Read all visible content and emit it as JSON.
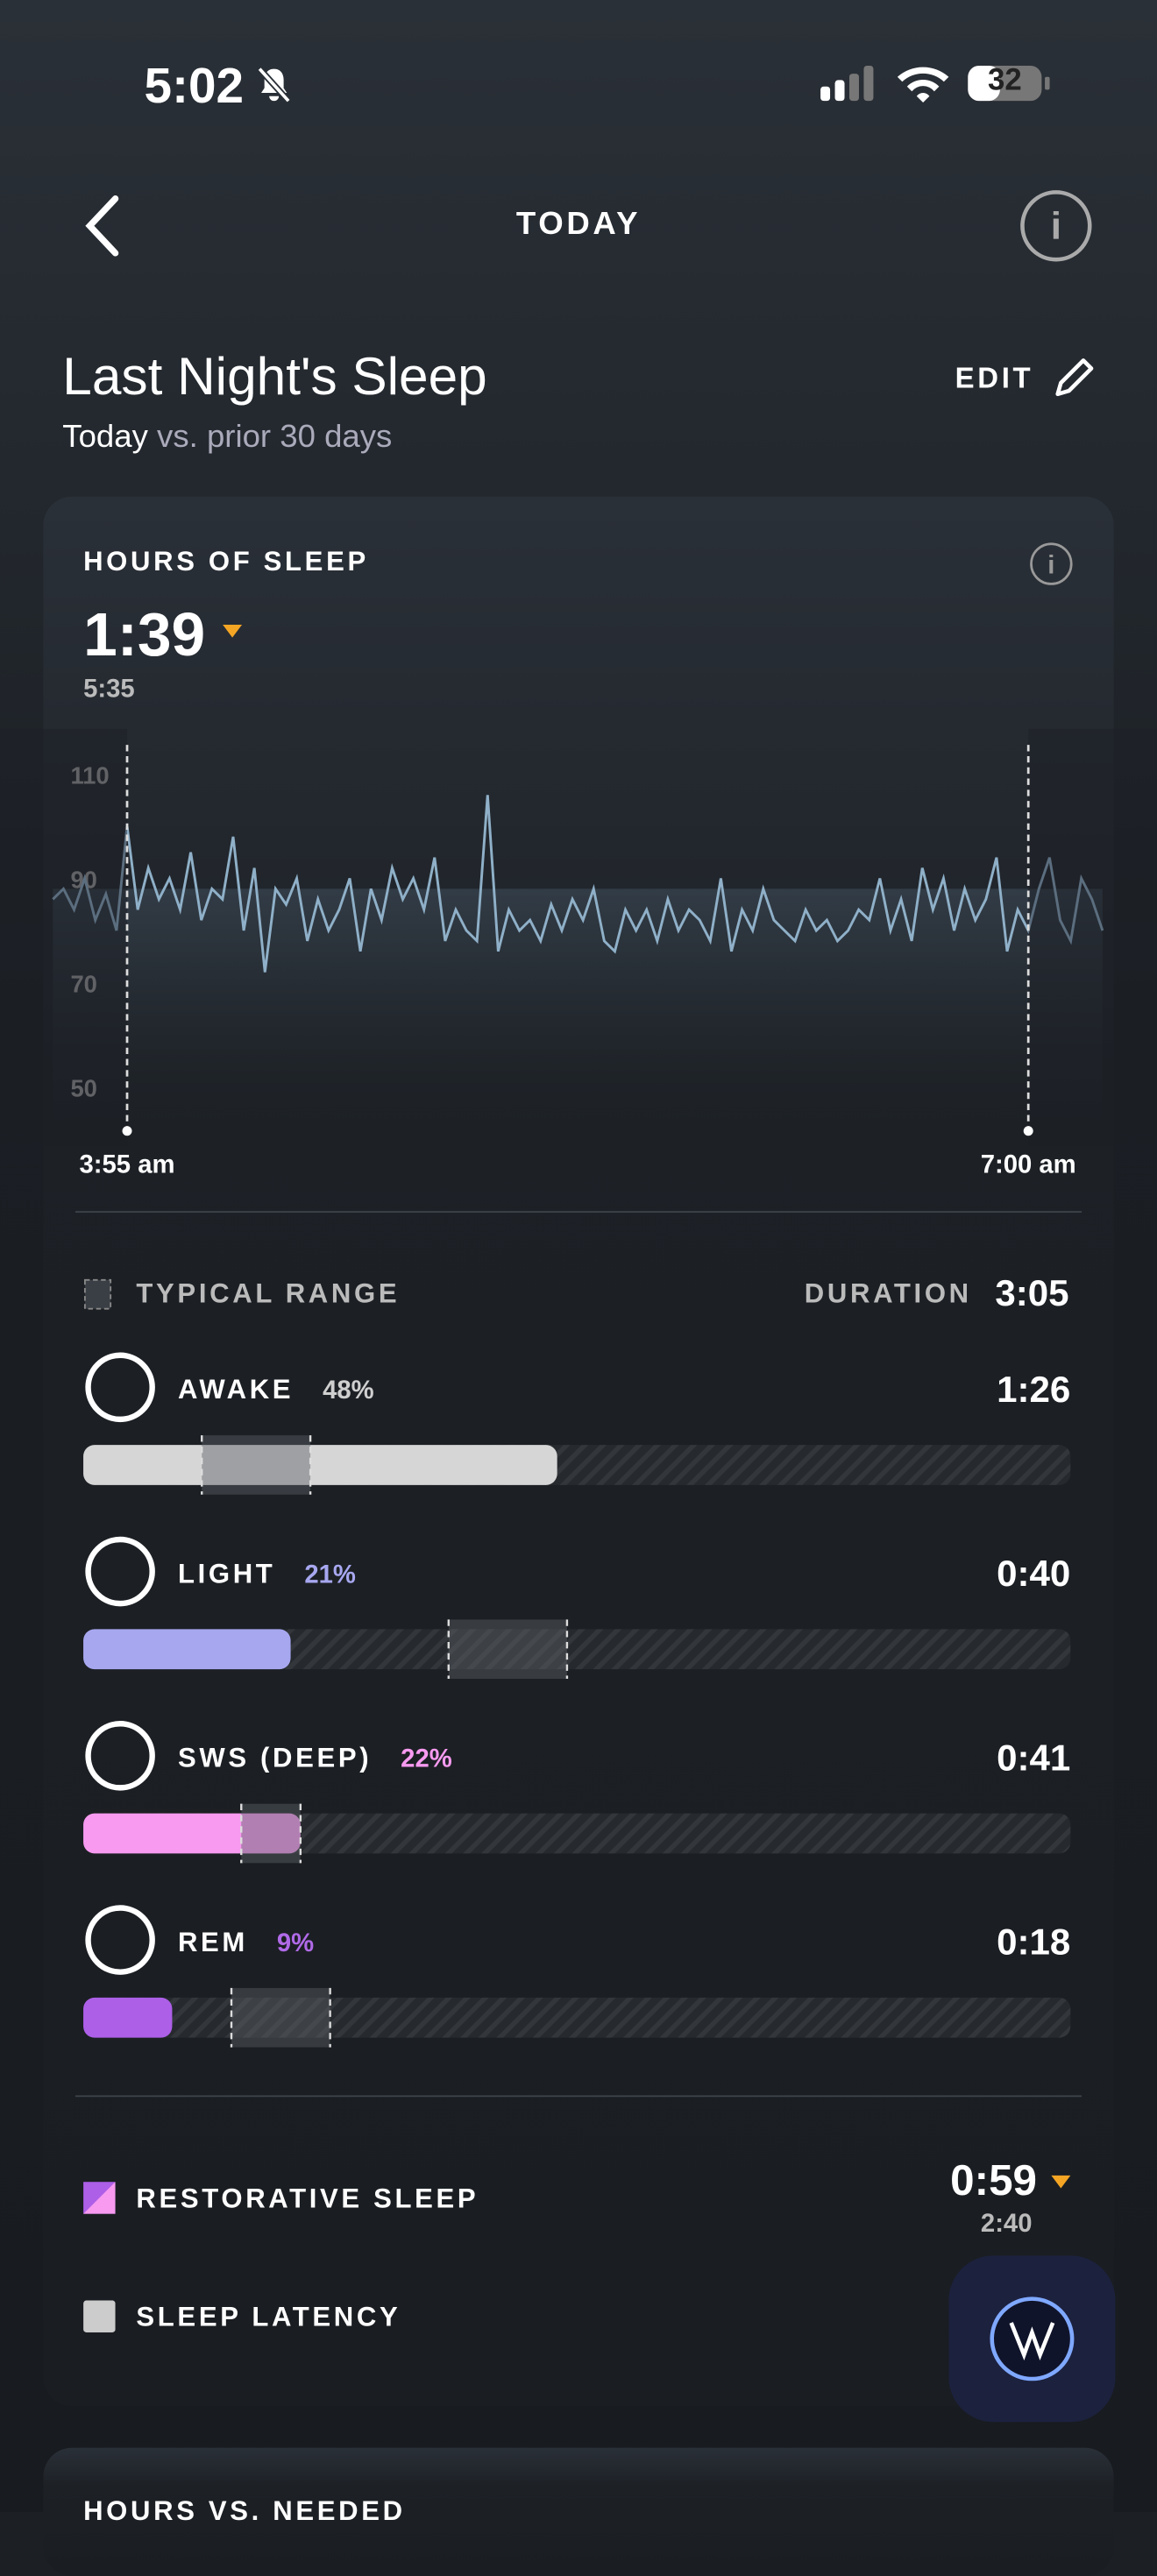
{
  "status_bar": {
    "time": "5:02",
    "battery": "32"
  },
  "header": {
    "title": "TODAY"
  },
  "page": {
    "title": "Last Night's Sleep",
    "subtitle_lead": "Today",
    "subtitle_rest": "vs. prior 30 days",
    "edit": "EDIT"
  },
  "card": {
    "title": "HOURS OF SLEEP",
    "value": "1:39",
    "baseline": "5:35"
  },
  "chart_data": {
    "type": "line",
    "x": [
      0,
      1,
      2,
      3,
      4,
      5,
      6,
      7,
      8,
      9,
      10,
      11,
      12,
      13,
      14,
      15,
      16,
      17,
      18,
      19,
      20,
      21,
      22,
      23,
      24,
      25,
      26,
      27,
      28,
      29,
      30,
      31,
      32,
      33,
      34,
      35,
      36,
      37,
      38,
      39,
      40,
      41,
      42,
      43,
      44,
      45,
      46,
      47,
      48,
      49,
      50,
      51,
      52,
      53,
      54,
      55,
      56,
      57,
      58,
      59,
      60,
      61,
      62,
      63,
      64,
      65,
      66,
      67,
      68,
      69,
      70,
      71,
      72,
      73,
      74,
      75,
      76,
      77,
      78,
      79,
      80,
      81,
      82,
      83,
      84,
      85,
      86,
      87,
      88,
      89,
      90,
      91,
      92,
      93,
      94,
      95,
      96,
      97,
      98,
      99
    ],
    "series": [
      {
        "color": "#8fb0c8",
        "values": [
          86,
          88,
          84,
          90,
          82,
          87,
          80,
          100,
          84,
          92,
          86,
          90,
          84,
          95,
          82,
          88,
          86,
          98,
          80,
          92,
          72,
          88,
          85,
          90,
          78,
          86,
          80,
          84,
          90,
          76,
          88,
          82,
          92,
          86,
          90,
          84,
          94,
          78,
          84,
          80,
          78,
          106,
          76,
          84,
          80,
          82,
          78,
          85,
          80,
          86,
          82,
          88,
          78,
          76,
          84,
          80,
          84,
          78,
          86,
          80,
          84,
          82,
          78,
          90,
          76,
          84,
          80,
          88,
          82,
          80,
          78,
          84,
          80,
          82,
          78,
          80,
          84,
          82,
          90,
          80,
          86,
          78,
          92,
          84,
          90,
          80,
          88,
          82,
          86,
          94,
          76,
          84,
          80,
          88,
          94,
          82,
          78,
          90,
          86,
          80
        ]
      }
    ],
    "xlim": [
      0,
      99
    ],
    "ylim": [
      40,
      115
    ],
    "yticks": [
      50,
      70,
      90,
      110
    ],
    "xticks": [
      {
        "value": 7,
        "label": "3:55 am"
      },
      {
        "value": 92,
        "label": "7:00 am"
      }
    ]
  },
  "stages": {
    "legend": "TYPICAL RANGE",
    "duration_label": "DURATION",
    "duration": "3:05",
    "items": [
      {
        "name": "AWAKE",
        "percent": 48,
        "percent_label": "48%",
        "time": "1:26",
        "color": "#d6d6d6",
        "label_color": "#cfcfcf",
        "typical_range": [
          12,
          23
        ]
      },
      {
        "name": "LIGHT",
        "percent": 21,
        "percent_label": "21%",
        "time": "0:40",
        "color": "#a7a7f0",
        "label_color": "#a7a7f0",
        "typical_range": [
          37,
          49
        ]
      },
      {
        "name": "SWS (DEEP)",
        "percent": 22,
        "percent_label": "22%",
        "time": "0:41",
        "color": "#f79af0",
        "label_color": "#f79af0",
        "typical_range": [
          16,
          22
        ]
      },
      {
        "name": "REM",
        "percent": 9,
        "percent_label": "9%",
        "time": "0:18",
        "color": "#ad5fe8",
        "label_color": "#b06ae8",
        "typical_range": [
          15,
          25
        ]
      }
    ]
  },
  "restorative": {
    "label": "RESTORATIVE SLEEP",
    "value": "0:59",
    "baseline": "2:40"
  },
  "latency": {
    "label": "SLEEP LATENCY"
  },
  "next_card": {
    "title": "HOURS VS. NEEDED"
  }
}
